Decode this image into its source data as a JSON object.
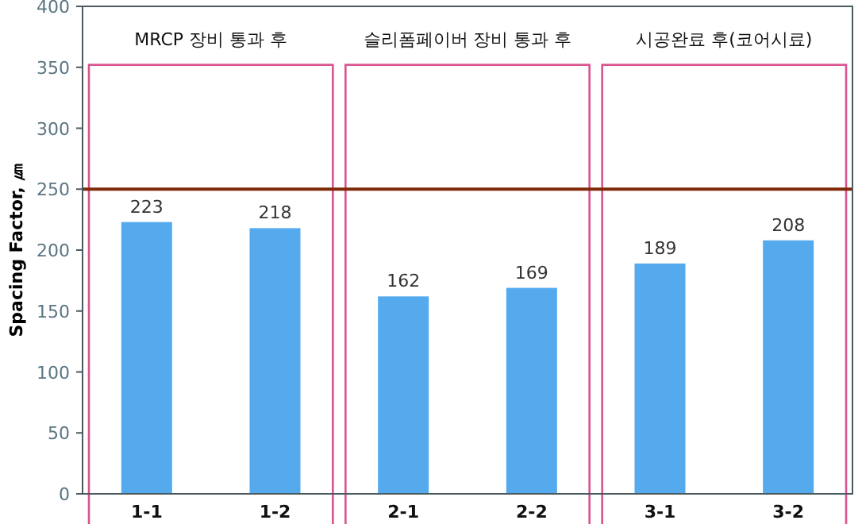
{
  "chart_data": {
    "type": "bar",
    "ylabel": "Spacing Factor, ㎛",
    "categories": [
      "1-1",
      "1-2",
      "2-1",
      "2-2",
      "3-1",
      "3-2"
    ],
    "values": [
      223,
      218,
      162,
      169,
      189,
      208
    ],
    "color": "#55aaee",
    "ylim": [
      0,
      400
    ],
    "yticks": [
      0,
      50,
      100,
      150,
      200,
      250,
      300,
      350,
      400
    ],
    "data_labels": true,
    "ref_lines": [
      {
        "axis": "y",
        "value": 250,
        "color": "#7f2a0a"
      }
    ],
    "annotations": [
      "MRCP 장비 통과 후",
      "슬리폼페이버 장비 통과 후",
      "시공완료 후(코어시료)"
    ]
  }
}
